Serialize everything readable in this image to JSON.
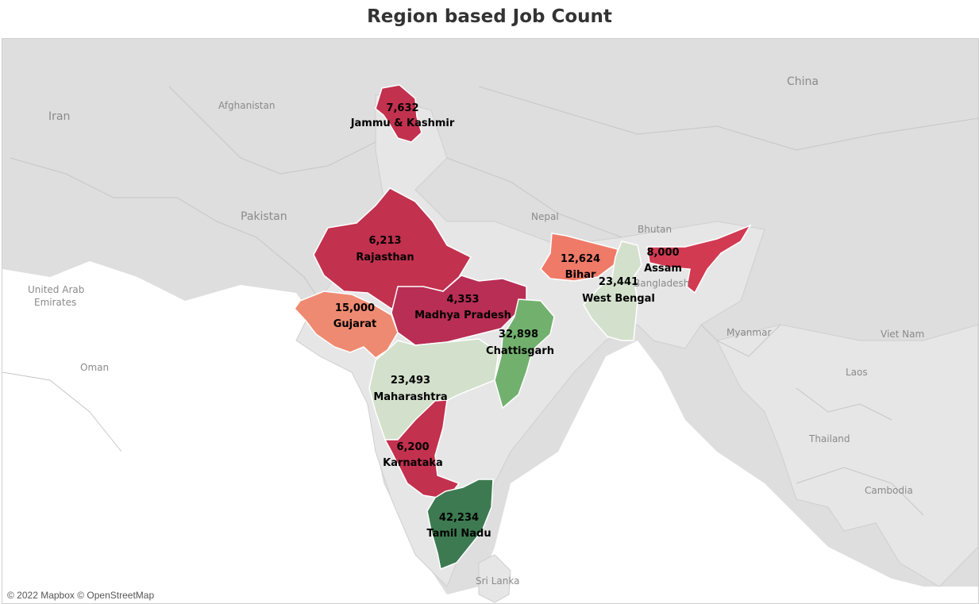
{
  "title": "Region based Job Count",
  "attribution": "© 2022 Mapbox © OpenStreetMap",
  "countries": [
    {
      "key": "iran",
      "label": "Iran"
    },
    {
      "key": "afghanistan",
      "label": "Afghanistan"
    },
    {
      "key": "pakistan",
      "label": "Pakistan"
    },
    {
      "key": "uae",
      "label": "United Arab"
    },
    {
      "key": "uae2",
      "label": "Emirates"
    },
    {
      "key": "oman",
      "label": "Oman"
    },
    {
      "key": "china",
      "label": "China"
    },
    {
      "key": "nepal",
      "label": "Nepal"
    },
    {
      "key": "bhutan",
      "label": "Bhutan"
    },
    {
      "key": "bangladesh",
      "label": "Bangladesh"
    },
    {
      "key": "myanmar",
      "label": "Myanmar"
    },
    {
      "key": "laos",
      "label": "Laos"
    },
    {
      "key": "vietnam",
      "label": "Viet Nam"
    },
    {
      "key": "thailand",
      "label": "Thailand"
    },
    {
      "key": "cambodia",
      "label": "Cambodia"
    },
    {
      "key": "srilanka",
      "label": "Sri Lanka"
    }
  ],
  "legend": {
    "low_color": "#c2314e",
    "mid_color": "#d3e0cc",
    "high_color": "#3d7a51"
  },
  "regions": [
    {
      "key": "jk",
      "name": "Jammu & Kashmir",
      "value": "7,632",
      "color": "#c2314e"
    },
    {
      "key": "rj",
      "name": "Rajasthan",
      "value": "6,213",
      "color": "#c2314e"
    },
    {
      "key": "gj",
      "name": "Gujarat",
      "value": "15,000",
      "color": "#ef8a72"
    },
    {
      "key": "mp",
      "name": "Madhya Pradesh",
      "value": "4,353",
      "color": "#b82e55"
    },
    {
      "key": "cg",
      "name": "Chattisgarh",
      "value": "32,898",
      "color": "#72b06e"
    },
    {
      "key": "mh",
      "name": "Maharashtra",
      "value": "23,493",
      "color": "#d3e0cc"
    },
    {
      "key": "ka",
      "name": "Karnataka",
      "value": "6,200",
      "color": "#c2314e"
    },
    {
      "key": "tn",
      "name": "Tamil Nadu",
      "value": "42,234",
      "color": "#3d7a51"
    },
    {
      "key": "br",
      "name": "Bihar",
      "value": "12,624",
      "color": "#ef7a68"
    },
    {
      "key": "wb",
      "name": "West Bengal",
      "value": "23,441",
      "color": "#d3e0cc"
    },
    {
      "key": "as",
      "name": "Assam",
      "value": "8,000",
      "color": "#d23a52"
    }
  ]
}
